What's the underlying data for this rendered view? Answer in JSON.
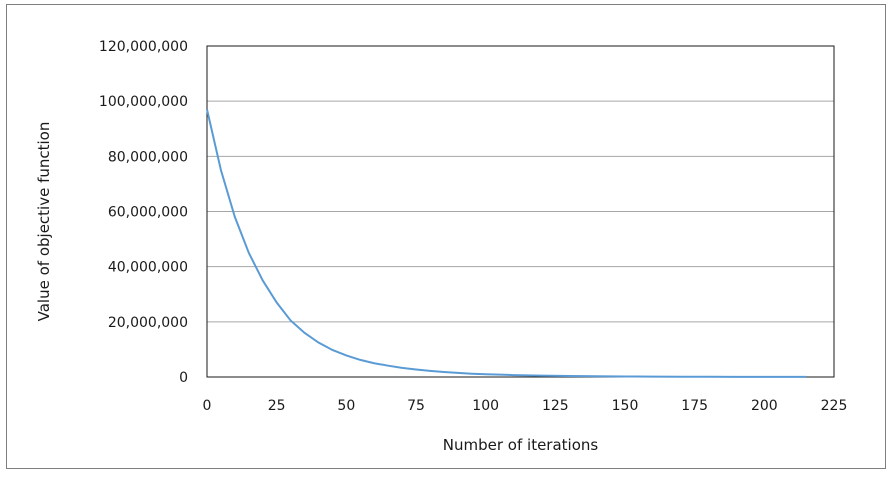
{
  "chart_data": {
    "type": "line",
    "title": "",
    "xlabel": "Number of iterations",
    "ylabel": "Value of objective function",
    "xlim": [
      0,
      225
    ],
    "ylim": [
      0,
      120000000
    ],
    "x_ticks": [
      0,
      25,
      50,
      75,
      100,
      125,
      150,
      175,
      200,
      225
    ],
    "y_ticks": [
      0,
      20000000,
      40000000,
      60000000,
      80000000,
      100000000,
      120000000
    ],
    "x_tick_labels": [
      "0",
      "25",
      "50",
      "75",
      "100",
      "125",
      "150",
      "175",
      "200",
      "225"
    ],
    "y_tick_labels": [
      "0",
      "20,000,000",
      "40,000,000",
      "60,000,000",
      "80,000,000",
      "100,000,000",
      "120,000,000"
    ],
    "grid": "horizontal",
    "legend": "none",
    "series": [
      {
        "color": "#5b9bd5",
        "x": [
          0,
          5,
          10,
          15,
          20,
          25,
          30,
          35,
          40,
          45,
          50,
          55,
          60,
          65,
          70,
          75,
          80,
          85,
          90,
          95,
          100,
          110,
          120,
          130,
          140,
          150,
          160,
          170,
          180,
          190,
          200,
          210,
          215
        ],
        "y": [
          97000000,
          75000000,
          58000000,
          45000000,
          35000000,
          27000000,
          20500000,
          16000000,
          12500000,
          9800000,
          7800000,
          6200000,
          5000000,
          4100000,
          3300000,
          2700000,
          2200000,
          1800000,
          1500000,
          1200000,
          1000000,
          700000,
          500000,
          350000,
          250000,
          180000,
          130000,
          100000,
          80000,
          60000,
          50000,
          40000,
          35000
        ]
      }
    ]
  }
}
